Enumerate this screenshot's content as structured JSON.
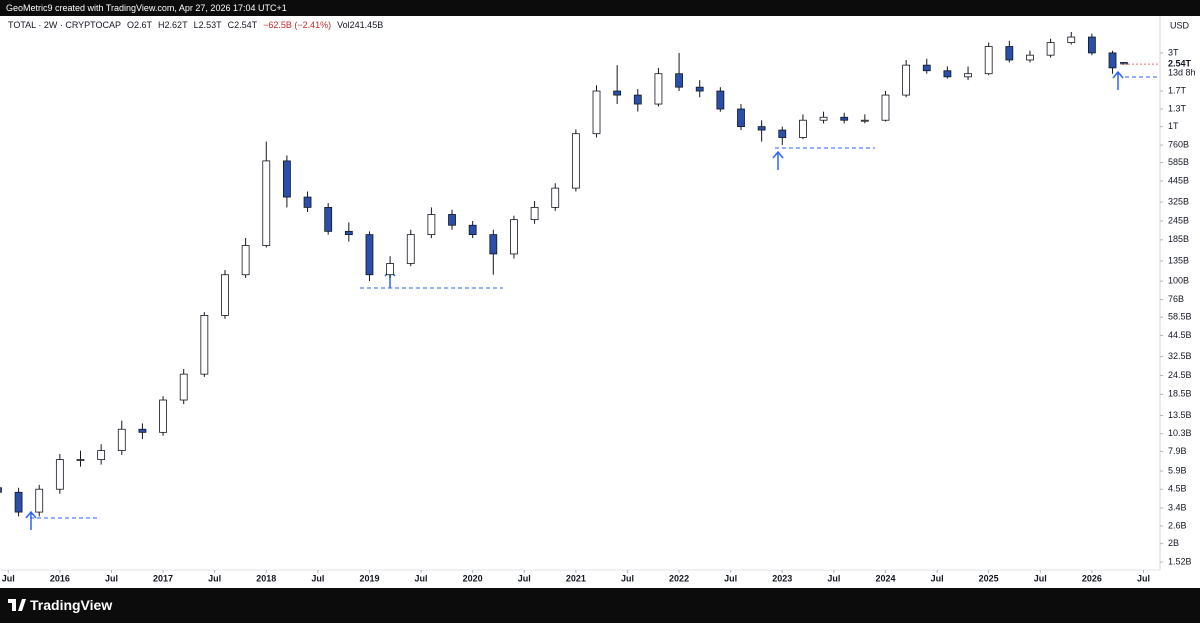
{
  "header": {
    "credit": "GeoMetric9 created with TradingView.com, Apr 27, 2026 17:04 UTC+1"
  },
  "footer": {
    "brand": "TradingView"
  },
  "chart_data": {
    "type": "candlestick",
    "legend": {
      "symbol": "TOTAL · 2W · CRYPTOCAP",
      "open": "O2.6T",
      "high": "H2.62T",
      "low": "L2.53T",
      "close": "C2.54T",
      "change": "−62.5B (−2.41%)",
      "volume": "Vol241.45B"
    },
    "currency": "USD",
    "last_price": {
      "value": 2540,
      "label": "2.54T"
    },
    "countdown": "13d 8h",
    "up_color": "#ffffff",
    "down_color": "#2a4fa8",
    "log_scale": true,
    "grid": false,
    "x": [
      2015.4,
      2015.6,
      2015.8,
      2016.0,
      2016.2,
      2016.4,
      2016.6,
      2016.8,
      2017.0,
      2017.2,
      2017.4,
      2017.6,
      2017.8,
      2018.0,
      2018.2,
      2018.4,
      2018.6,
      2018.8,
      2019.0,
      2019.2,
      2019.4,
      2019.6,
      2019.8,
      2020.0,
      2020.2,
      2020.4,
      2020.6,
      2020.8,
      2021.0,
      2021.2,
      2021.4,
      2021.6,
      2021.8,
      2022.0,
      2022.2,
      2022.4,
      2022.6,
      2022.8,
      2023.0,
      2023.2,
      2023.4,
      2023.6,
      2023.8,
      2024.0,
      2024.2,
      2024.4,
      2024.6,
      2024.8,
      2025.0,
      2025.2,
      2025.4,
      2025.6,
      2025.8,
      2026.0,
      2026.2,
      2026.31
    ],
    "open": [
      4.6,
      4.3,
      3.2,
      4.5,
      7,
      7,
      8,
      11,
      10.5,
      17,
      25,
      60,
      110,
      170,
      600,
      350,
      300,
      210,
      200,
      110,
      130,
      200,
      270,
      230,
      200,
      150,
      250,
      300,
      400,
      900,
      1700,
      1600,
      1400,
      2200,
      1800,
      1700,
      1300,
      1000,
      950,
      850,
      1100,
      1150,
      1100,
      1100,
      1600,
      2500,
      2300,
      2100,
      2200,
      3300,
      2700,
      2900,
      3500,
      3800,
      3000,
      2600
    ],
    "high": [
      5.2,
      4.6,
      4.8,
      7.6,
      8,
      8.8,
      12.5,
      12,
      18,
      27,
      63,
      118,
      190,
      800,
      650,
      380,
      320,
      240,
      210,
      145,
      215,
      300,
      290,
      245,
      215,
      265,
      330,
      430,
      960,
      1850,
      2500,
      1750,
      2400,
      3000,
      2000,
      1800,
      1400,
      1100,
      1000,
      1200,
      1250,
      1230,
      1200,
      1700,
      2700,
      2750,
      2450,
      2450,
      3500,
      3600,
      3100,
      3700,
      4100,
      4000,
      3100,
      2620
    ],
    "low": [
      4.0,
      3.0,
      3.0,
      4.2,
      6.3,
      6.5,
      7.5,
      9.5,
      10,
      16,
      24,
      57,
      105,
      165,
      300,
      280,
      200,
      180,
      100,
      105,
      125,
      190,
      215,
      190,
      110,
      140,
      235,
      285,
      380,
      850,
      1400,
      1250,
      1350,
      1700,
      1550,
      1250,
      950,
      800,
      760,
      830,
      1050,
      1050,
      1050,
      1080,
      1550,
      2200,
      2050,
      2000,
      2150,
      2600,
      2600,
      2800,
      3400,
      2900,
      2200,
      2530
    ],
    "close": [
      4.3,
      3.2,
      4.5,
      7,
      7,
      8,
      11,
      10.5,
      17,
      25,
      60,
      110,
      170,
      600,
      350,
      300,
      210,
      200,
      110,
      130,
      200,
      270,
      230,
      200,
      150,
      250,
      300,
      400,
      900,
      1700,
      1600,
      1400,
      2200,
      1800,
      1700,
      1300,
      1000,
      950,
      850,
      1100,
      1150,
      1100,
      1100,
      1600,
      2500,
      2300,
      2100,
      2200,
      3300,
      2700,
      2900,
      3500,
      3800,
      3000,
      2400,
      2540
    ],
    "xlim": [
      2015.42,
      2026.66
    ],
    "xticks": [
      {
        "value": 2015.5,
        "label": "Jul"
      },
      {
        "value": 2016,
        "label": "2016"
      },
      {
        "value": 2016.5,
        "label": "Jul"
      },
      {
        "value": 2017,
        "label": "2017"
      },
      {
        "value": 2017.5,
        "label": "Jul"
      },
      {
        "value": 2018,
        "label": "2018"
      },
      {
        "value": 2018.5,
        "label": "Jul"
      },
      {
        "value": 2019,
        "label": "2019"
      },
      {
        "value": 2019.5,
        "label": "Jul"
      },
      {
        "value": 2020,
        "label": "2020"
      },
      {
        "value": 2020.5,
        "label": "Jul"
      },
      {
        "value": 2021,
        "label": "2021"
      },
      {
        "value": 2021.5,
        "label": "Jul"
      },
      {
        "value": 2022,
        "label": "2022"
      },
      {
        "value": 2022.5,
        "label": "Jul"
      },
      {
        "value": 2023,
        "label": "2023"
      },
      {
        "value": 2023.5,
        "label": "Jul"
      },
      {
        "value": 2024,
        "label": "2024"
      },
      {
        "value": 2024.5,
        "label": "Jul"
      },
      {
        "value": 2025,
        "label": "2025"
      },
      {
        "value": 2025.5,
        "label": "Jul"
      },
      {
        "value": 2026,
        "label": "2026"
      },
      {
        "value": 2026.5,
        "label": "Jul"
      }
    ],
    "ylim": [
      1.35,
      5200
    ],
    "yticks": [
      {
        "value": 3000,
        "label": "3T"
      },
      {
        "value": 1700,
        "label": "1.7T"
      },
      {
        "value": 1300,
        "label": "1.3T"
      },
      {
        "value": 1000,
        "label": "1T"
      },
      {
        "value": 760,
        "label": "760B"
      },
      {
        "value": 585,
        "label": "585B"
      },
      {
        "value": 445,
        "label": "445B"
      },
      {
        "value": 325,
        "label": "325B"
      },
      {
        "value": 245,
        "label": "245B"
      },
      {
        "value": 185,
        "label": "185B"
      },
      {
        "value": 135,
        "label": "135B"
      },
      {
        "value": 100,
        "label": "100B"
      },
      {
        "value": 76,
        "label": "76B"
      },
      {
        "value": 58.5,
        "label": "58.5B"
      },
      {
        "value": 44.5,
        "label": "44.5B"
      },
      {
        "value": 32.5,
        "label": "32.5B"
      },
      {
        "value": 24.5,
        "label": "24.5B"
      },
      {
        "value": 18.5,
        "label": "18.5B"
      },
      {
        "value": 13.5,
        "label": "13.5B"
      },
      {
        "value": 10.3,
        "label": "10.3B"
      },
      {
        "value": 7.9,
        "label": "7.9B"
      },
      {
        "value": 5.9,
        "label": "5.9B"
      },
      {
        "value": 4.5,
        "label": "4.5B"
      },
      {
        "value": 3.4,
        "label": "3.4B"
      },
      {
        "value": 2.6,
        "label": "2.6B"
      },
      {
        "value": 2,
        "label": "2B"
      },
      {
        "value": 1.52,
        "label": "1.52B"
      }
    ]
  }
}
